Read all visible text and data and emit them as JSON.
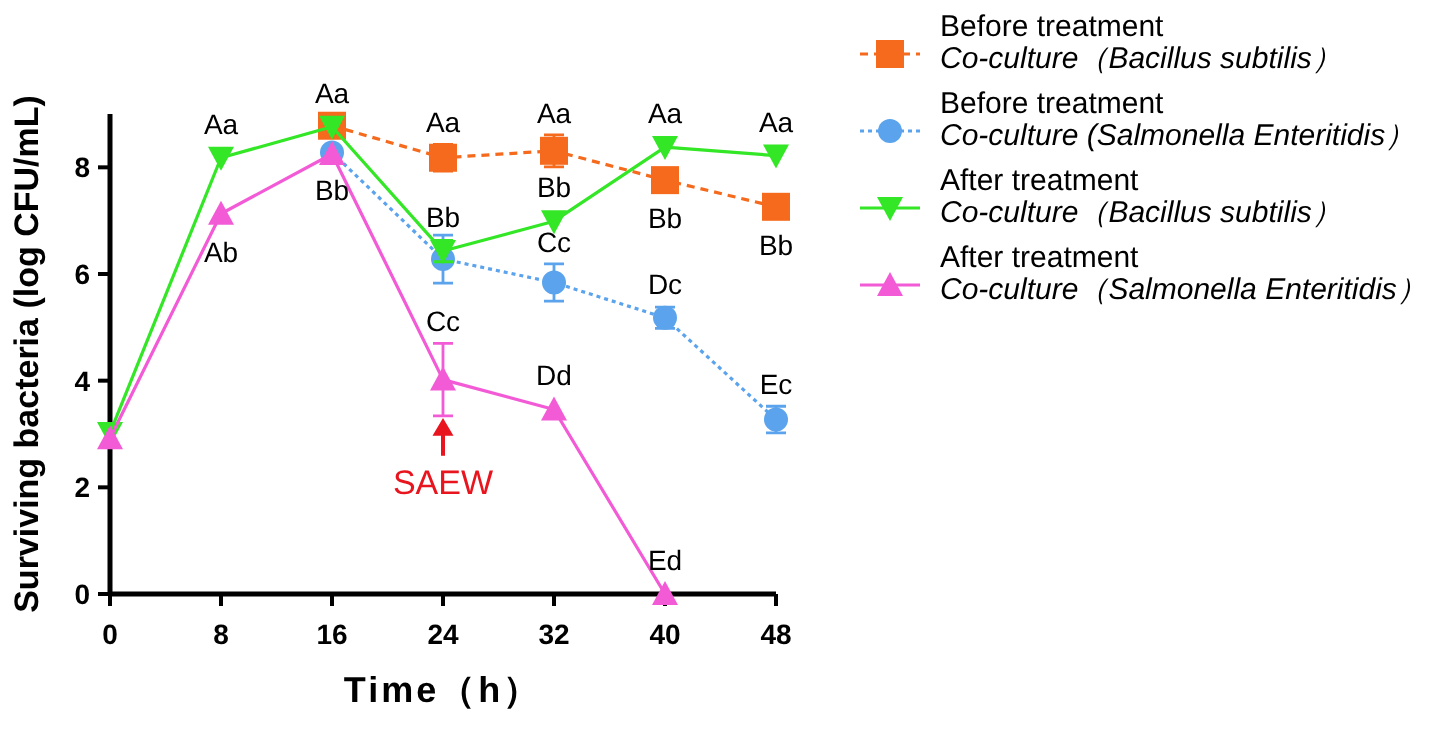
{
  "chart_data": {
    "type": "line",
    "xlabel": "Time（h）",
    "ylabel": "Surviving bacteria (log CFU/mL)",
    "xlim": [
      0,
      48
    ],
    "ylim": [
      0,
      9
    ],
    "xticks": [
      0,
      8,
      16,
      24,
      32,
      40,
      48
    ],
    "yticks": [
      0,
      2,
      4,
      6,
      8
    ],
    "grid": false,
    "legend": "right",
    "line_style": "solid",
    "series": [
      {
        "name": "Before treatment\nCo-culture（Bacillus subtilis）",
        "color": "#f56a1c",
        "marker": "square",
        "line_style": "dashed",
        "x": [
          16,
          24,
          32,
          40,
          48
        ],
        "values": [
          8.78,
          8.18,
          8.31,
          7.76,
          7.26
        ],
        "errors": [
          null,
          0.25,
          0.3,
          null,
          null
        ],
        "value_labels": [
          null,
          "Aa",
          "Aa",
          "Bb",
          "Bb"
        ]
      },
      {
        "name": "Before treatment\nCo-culture (Salmonella Enteritidis）",
        "color": "#5ba3ec",
        "marker": "circle",
        "line_style": "dotted",
        "x": [
          16,
          24,
          32,
          40,
          48
        ],
        "values": [
          8.28,
          6.28,
          5.84,
          5.18,
          3.27
        ],
        "errors": [
          null,
          0.45,
          0.35,
          0.2,
          0.25
        ],
        "value_labels": [
          "Bb",
          null,
          "Cc",
          "Dc",
          "Ec"
        ]
      },
      {
        "name": "After treatment\nCo-culture（Bacillus subtilis）",
        "color": "#33e626",
        "marker": "triangle-down",
        "x": [
          0,
          8,
          16,
          24,
          32,
          40,
          48
        ],
        "values": [
          3.02,
          8.18,
          8.76,
          6.43,
          6.99,
          8.38,
          8.22
        ],
        "errors": [
          null,
          null,
          null,
          0.2,
          null,
          null,
          null
        ],
        "value_labels": [
          null,
          "Aa",
          "Aa",
          "Bb",
          "Bb",
          "Aa",
          "Aa"
        ]
      },
      {
        "name": "After treatment\nCo-culture（Salmonella Enteritidis）",
        "color": "#f25ad6",
        "marker": "triangle",
        "x": [
          0,
          8,
          16,
          24,
          32,
          40
        ],
        "values": [
          2.92,
          7.13,
          8.25,
          4.02,
          3.46,
          0
        ],
        "errors": [
          null,
          null,
          null,
          0.68,
          null,
          null
        ],
        "value_labels": [
          null,
          "Ab",
          null,
          "Cc",
          "Dd",
          "Ed"
        ]
      }
    ],
    "annotations": [
      {
        "text": "SAEW",
        "x": 24,
        "y": 3.34
      }
    ]
  }
}
